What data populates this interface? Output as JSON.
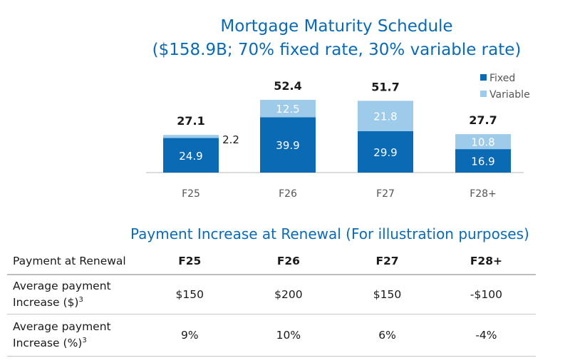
{
  "header": {
    "title": "Mortgage Maturity Schedule",
    "subtitle": "($158.9B; 70% fixed rate, 30% variable rate)"
  },
  "chart_data": {
    "type": "bar",
    "stacked": true,
    "title": "Mortgage Maturity Schedule",
    "categories": [
      "F25",
      "F26",
      "F27",
      "F28+"
    ],
    "series": [
      {
        "name": "Fixed",
        "values": [
          24.9,
          39.9,
          29.9,
          16.9
        ],
        "color": "#0a6ab4"
      },
      {
        "name": "Variable",
        "values": [
          2.2,
          12.5,
          21.8,
          10.8
        ],
        "color": "#9ecbea"
      }
    ],
    "totals": [
      "27.1",
      "52.4",
      "51.7",
      "27.7"
    ],
    "variable_label_outside": [
      true,
      false,
      false,
      false
    ],
    "ylim": [
      0,
      52.4
    ],
    "legend": "top-right",
    "colors": {
      "fixed": "#0a6ab4",
      "variable": "#9ecbea",
      "title": "#0a6ab4",
      "axis": "#d0d0d0",
      "tick": "#555555"
    }
  },
  "table": {
    "title": "Payment Increase at Renewal (For illustration purposes)",
    "header": [
      "Payment at Renewal",
      "F25",
      "F26",
      "F27",
      "F28+"
    ],
    "rows": [
      {
        "label_line1": "Average payment",
        "label_line2": "Increase ($)",
        "footnote": "3",
        "values": [
          "$150",
          "$200",
          "$150",
          "-$100"
        ]
      },
      {
        "label_line1": "Average payment",
        "label_line2": "Increase (%)",
        "footnote": "3",
        "values": [
          "9%",
          "10%",
          "6%",
          "-4%"
        ]
      }
    ]
  }
}
